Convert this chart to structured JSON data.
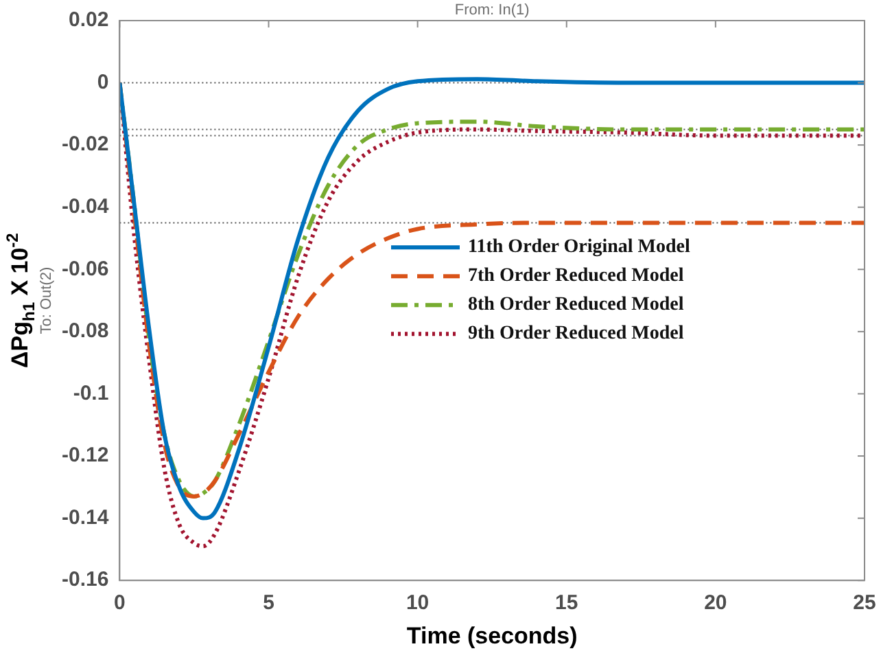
{
  "chart_data": {
    "type": "line",
    "xlabel": "Time (seconds)",
    "ylabel": "ΔPg$_{h1}$ X 10$^{-2}$",
    "annotations": [
      "From: In(1)",
      "To: Out(2)"
    ],
    "xlim": [
      0,
      25
    ],
    "xticks": [
      0,
      5,
      10,
      15,
      20,
      25
    ],
    "ylim": [
      -0.16,
      0.02
    ],
    "yticks": [
      -0.16,
      -0.14,
      -0.12,
      -0.1,
      -0.08,
      -0.06,
      -0.04,
      -0.02,
      0,
      0.02
    ],
    "grid": false,
    "legend": "right",
    "marker": "none",
    "ref_lines": [
      {
        "axis": "y",
        "value": 0,
        "color": "#555555",
        "line_style": "dotted"
      },
      {
        "axis": "y",
        "value": -0.015,
        "color": "#555555",
        "line_style": "dotted"
      },
      {
        "axis": "y",
        "value": -0.017,
        "color": "#555555",
        "line_style": "dotted"
      },
      {
        "axis": "y",
        "value": -0.045,
        "color": "#555555",
        "line_style": "dotted"
      }
    ],
    "x": [
      0,
      0.5,
      1,
      1.5,
      2,
      2.5,
      2.8,
      3.2,
      4,
      5,
      6,
      7,
      8,
      9,
      10,
      12,
      14,
      17,
      20,
      25
    ],
    "series": [
      {
        "name": "11th Order Original Model",
        "color": "#0072bd",
        "line_style": "solid",
        "values": [
          0,
          -0.04,
          -0.08,
          -0.113,
          -0.13,
          -0.138,
          -0.14,
          -0.138,
          -0.118,
          -0.085,
          -0.05,
          -0.024,
          -0.009,
          -0.002,
          0.0005,
          0.0012,
          0.0005,
          0,
          0,
          0
        ]
      },
      {
        "name": "7th Order Reduced Model",
        "color": "#d95319",
        "line_style": "dashed",
        "values": [
          0,
          -0.043,
          -0.085,
          -0.116,
          -0.13,
          -0.133,
          -0.132,
          -0.128,
          -0.113,
          -0.093,
          -0.075,
          -0.063,
          -0.055,
          -0.05,
          -0.047,
          -0.0455,
          -0.045,
          -0.045,
          -0.045,
          -0.045
        ]
      },
      {
        "name": "8th Order Reduced Model",
        "color": "#77ac30",
        "line_style": "dashdot",
        "values": [
          0,
          -0.04,
          -0.083,
          -0.113,
          -0.128,
          -0.133,
          -0.132,
          -0.128,
          -0.11,
          -0.083,
          -0.055,
          -0.033,
          -0.02,
          -0.015,
          -0.013,
          -0.0125,
          -0.014,
          -0.015,
          -0.015,
          -0.015
        ]
      },
      {
        "name": "9th Order Reduced Model",
        "color": "#a2142f",
        "line_style": "dotted",
        "values": [
          0,
          -0.05,
          -0.09,
          -0.124,
          -0.142,
          -0.148,
          -0.149,
          -0.145,
          -0.125,
          -0.095,
          -0.062,
          -0.038,
          -0.025,
          -0.019,
          -0.016,
          -0.015,
          -0.0155,
          -0.016,
          -0.017,
          -0.017
        ]
      }
    ]
  }
}
